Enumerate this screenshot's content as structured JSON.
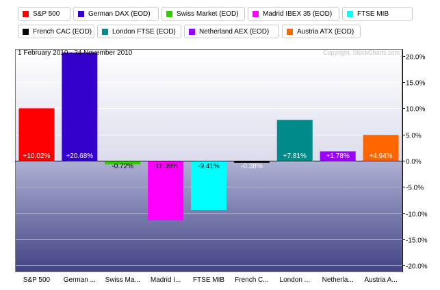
{
  "chart_data": {
    "type": "bar",
    "date_range": "1 February 2010 - 24 November 2010",
    "copyright": "Copyright, StockCharts.com",
    "categories": [
      "S&P 500",
      "German ...",
      "Swiss Ma...",
      "Madrid I...",
      "FTSE MIB",
      "French C...",
      "London ...",
      "Netherla...",
      "Austria A..."
    ],
    "values": [
      10.02,
      20.68,
      -0.72,
      -11.39,
      -9.41,
      -0.38,
      7.81,
      1.78,
      4.94
    ],
    "value_labels": [
      "+10.02%",
      "+20.68%",
      "-0.72%",
      "-11.39%",
      "-9.41%",
      "-0.38%",
      "+7.81%",
      "+1.78%",
      "+4.94%"
    ],
    "colors": [
      "#ff0000",
      "#3300cc",
      "#33cc00",
      "#ff00ff",
      "#00ffff",
      "#000000",
      "#008b8b",
      "#9900ff",
      "#ff6600"
    ],
    "label_colors": [
      "#ffffff",
      "#ffffff",
      "#000000",
      "#000000",
      "#000000",
      "#ffffff",
      "#ffffff",
      "#ffffff",
      "#ffffff"
    ],
    "y_ticks": [
      20,
      15,
      10,
      5,
      0,
      -5,
      -10,
      -15,
      -20
    ],
    "y_tick_labels": [
      "20.0%",
      "15.0%",
      "10.0%",
      "5.0%",
      "0.0%",
      "-5.0%",
      "-10.0%",
      "-15.0%",
      "-20.0%"
    ],
    "ylim": [
      -21.3,
      21.3
    ],
    "grid": true,
    "legend": [
      {
        "label": "S&P 500",
        "color": "#ff0000"
      },
      {
        "label": "German DAX (EOD)",
        "color": "#3300cc"
      },
      {
        "label": "Swiss Market (EOD)",
        "color": "#33cc00"
      },
      {
        "label": "Madrid IBEX 35 (EOD)",
        "color": "#ff00ff"
      },
      {
        "label": "FTSE MIB",
        "color": "#00ffff"
      },
      {
        "label": "French CAC (EOD)",
        "color": "#000000"
      },
      {
        "label": "London FTSE (EOD)",
        "color": "#008b8b"
      },
      {
        "label": "Netherland AEX (EOD)",
        "color": "#9900ff"
      },
      {
        "label": "Austria ATX (EOD)",
        "color": "#ff6600"
      }
    ]
  }
}
